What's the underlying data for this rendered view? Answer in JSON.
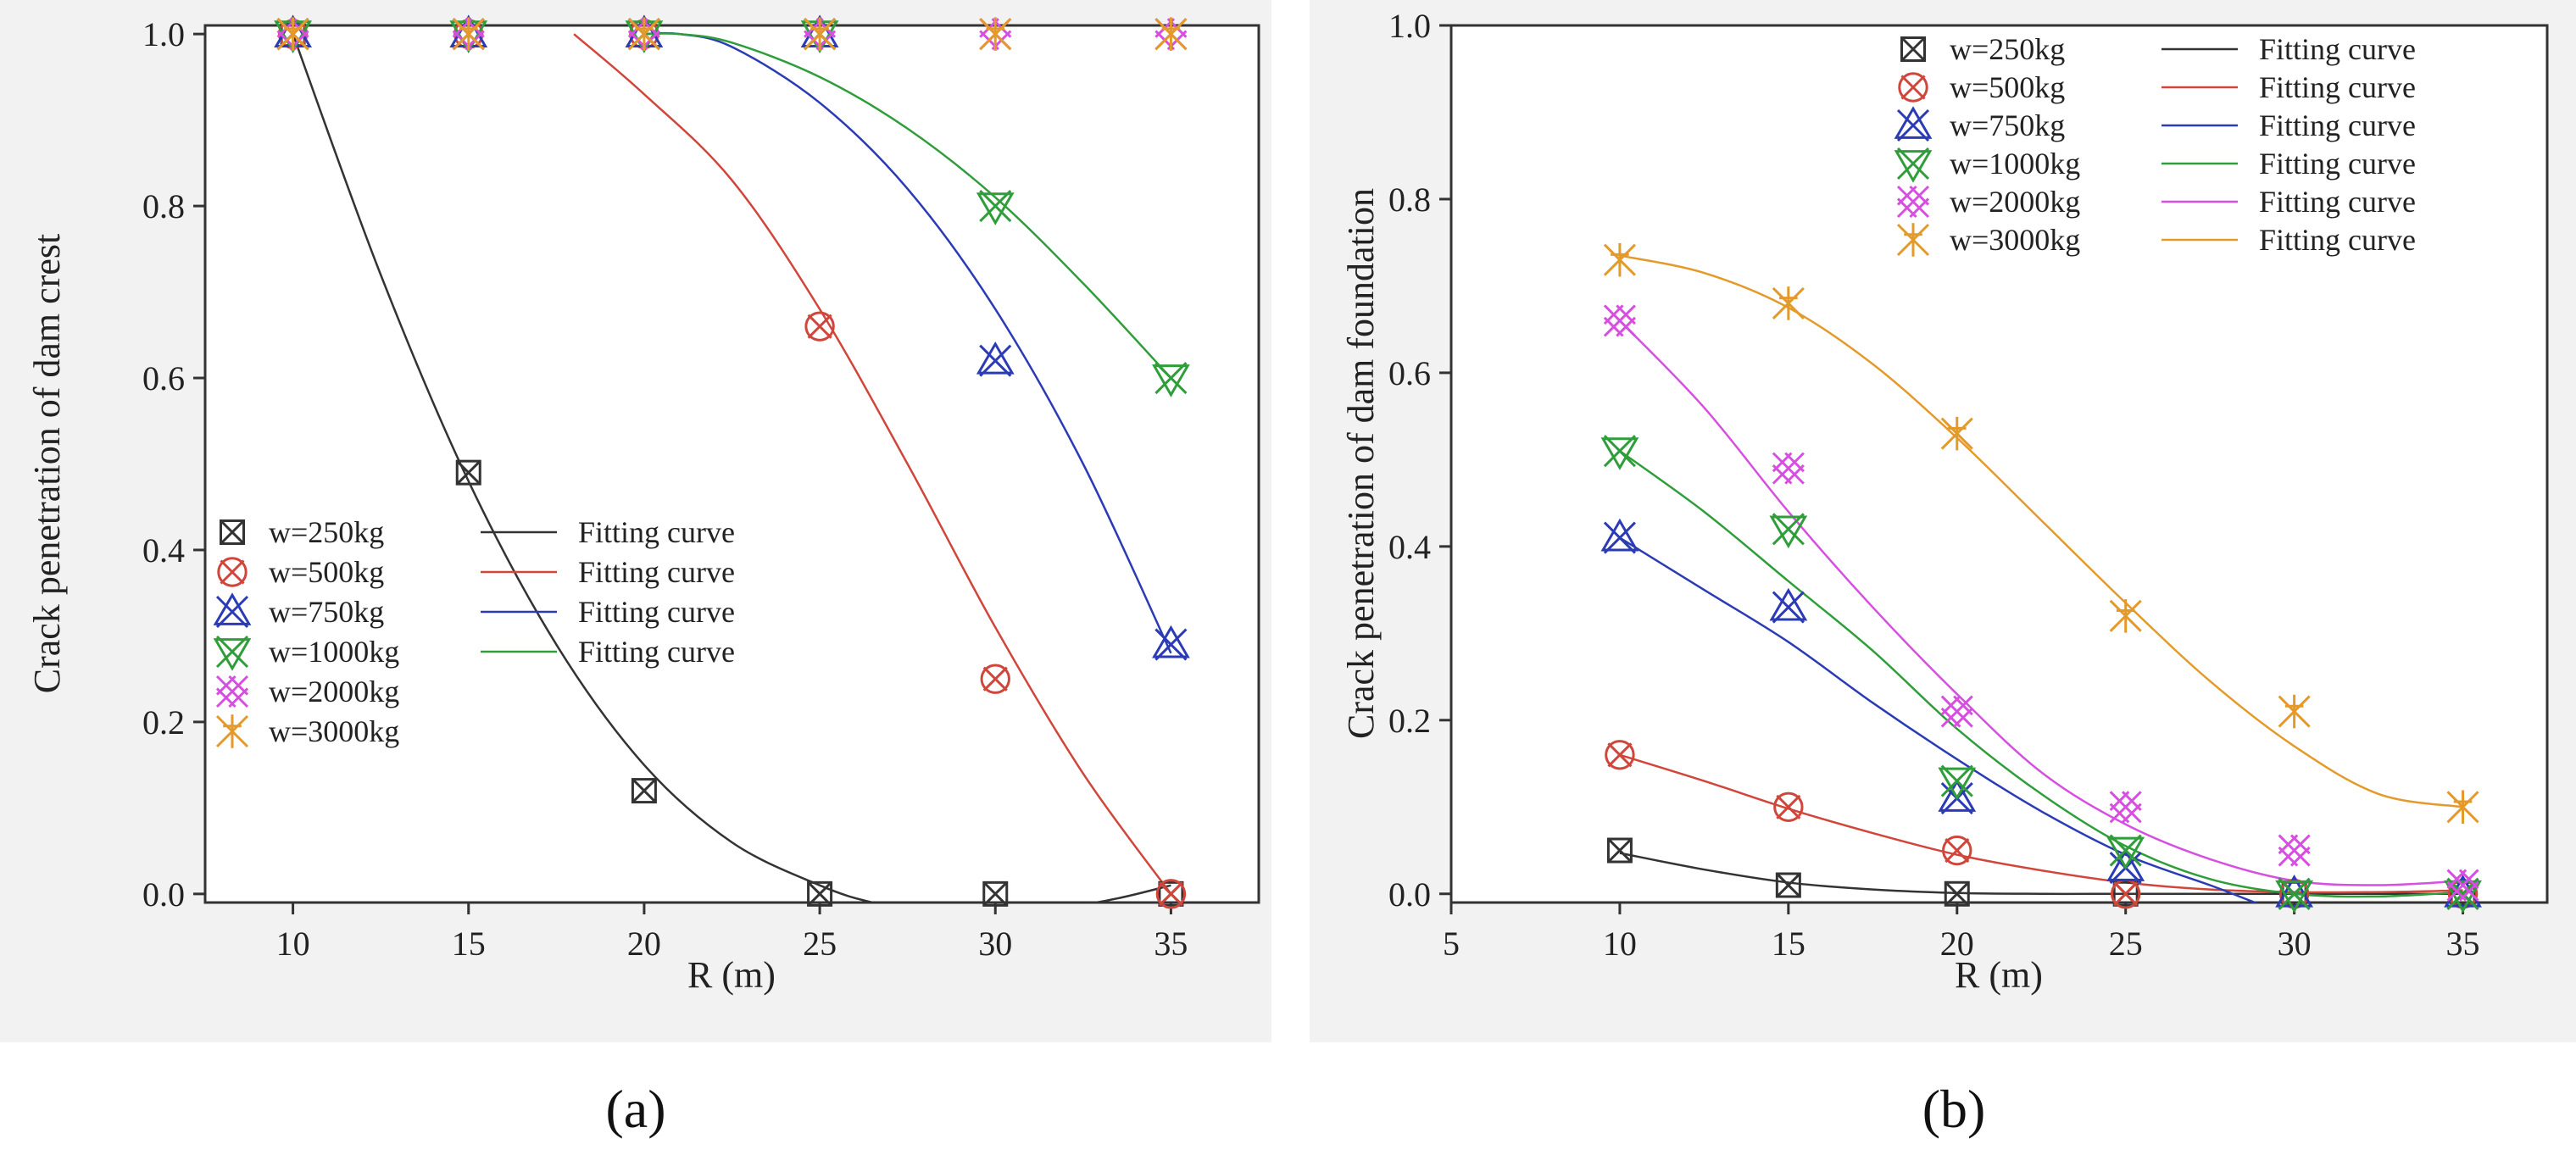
{
  "chart_data": [
    {
      "type": "scatter",
      "panel_label": "(a)",
      "xlabel": "R (m)",
      "ylabel": "Crack penetration of dam crest",
      "xlim": [
        7.5,
        37.5
      ],
      "ylim": [
        -0.01,
        1.01
      ],
      "xticks": [
        10,
        15,
        20,
        25,
        30,
        35
      ],
      "yticks": [
        0.0,
        0.2,
        0.4,
        0.6,
        0.8,
        1.0
      ],
      "xtick_labels": [
        "10",
        "15",
        "20",
        "25",
        "30",
        "35"
      ],
      "ytick_labels": [
        "0.0",
        "0.2",
        "0.4",
        "0.6",
        "0.8",
        "1.0"
      ],
      "legend_position": "lower-left",
      "fit_label": "Fitting curve",
      "series": [
        {
          "name": "w=250kg",
          "color": "#333333",
          "marker": "box-x",
          "has_fit": true,
          "x": [
            10,
            15,
            20,
            25,
            30,
            35
          ],
          "y": [
            1.0,
            0.49,
            0.12,
            0.0,
            0.0,
            0.0
          ],
          "fit_x": [
            10,
            12.5,
            15,
            17.5,
            20,
            22.5,
            25,
            26.5,
            28,
            30,
            32,
            33.5,
            35
          ],
          "fit_y": [
            1.0,
            0.72,
            0.48,
            0.29,
            0.15,
            0.06,
            0.01,
            -0.01,
            -0.02,
            -0.02,
            -0.015,
            -0.005,
            0.01
          ]
        },
        {
          "name": "w=500kg",
          "color": "#d0463b",
          "marker": "circle-x",
          "has_fit": true,
          "x": [
            10,
            15,
            20,
            25,
            30,
            35
          ],
          "y": [
            1.0,
            1.0,
            1.0,
            0.66,
            0.25,
            0.0
          ],
          "fit_x": [
            18,
            20,
            22.5,
            25,
            27.5,
            30,
            32.5,
            35
          ],
          "fit_y": [
            1.0,
            0.93,
            0.83,
            0.68,
            0.5,
            0.31,
            0.14,
            0.0
          ]
        },
        {
          "name": "w=750kg",
          "color": "#2b3bb5",
          "marker": "triangle-x",
          "has_fit": true,
          "x": [
            10,
            15,
            20,
            25,
            30,
            35
          ],
          "y": [
            1.0,
            1.0,
            1.0,
            1.0,
            0.62,
            0.29
          ],
          "fit_x": [
            20,
            21,
            22.5,
            25,
            27.5,
            30,
            32.5,
            35
          ],
          "fit_y": [
            1.0,
            1.0,
            0.985,
            0.92,
            0.82,
            0.68,
            0.5,
            0.28
          ]
        },
        {
          "name": "w=1000kg",
          "color": "#2f9e3a",
          "marker": "triangle-down-x",
          "has_fit": true,
          "x": [
            10,
            15,
            20,
            25,
            30,
            35
          ],
          "y": [
            1.0,
            1.0,
            1.0,
            1.0,
            0.8,
            0.6
          ],
          "fit_x": [
            20,
            21,
            22.5,
            25,
            27.5,
            30,
            32.5,
            35
          ],
          "fit_y": [
            1.0,
            1.0,
            0.99,
            0.95,
            0.89,
            0.81,
            0.71,
            0.6
          ]
        },
        {
          "name": "w=2000kg",
          "color": "#d64fe0",
          "marker": "diamond-x",
          "has_fit": false,
          "x": [
            10,
            15,
            20,
            25,
            30,
            35
          ],
          "y": [
            1.0,
            1.0,
            1.0,
            1.0,
            1.0,
            1.0
          ]
        },
        {
          "name": "w=3000kg",
          "color": "#e49a2a",
          "marker": "star",
          "has_fit": false,
          "x": [
            10,
            15,
            20,
            25,
            30,
            35
          ],
          "y": [
            1.0,
            1.0,
            1.0,
            1.0,
            1.0,
            1.0
          ]
        }
      ]
    },
    {
      "type": "scatter",
      "panel_label": "(b)",
      "xlabel": "R (m)",
      "ylabel": "Crack penetration of dam foundation",
      "xlim": [
        5,
        37.5
      ],
      "ylim": [
        -0.01,
        1.0
      ],
      "xticks": [
        5,
        10,
        15,
        20,
        25,
        30,
        35
      ],
      "yticks": [
        0.0,
        0.2,
        0.4,
        0.6,
        0.8,
        1.0
      ],
      "xtick_labels": [
        "5",
        "10",
        "15",
        "20",
        "25",
        "30",
        "35"
      ],
      "ytick_labels": [
        "0.0",
        "0.2",
        "0.4",
        "0.6",
        "0.8",
        "1.0"
      ],
      "legend_position": "top-right",
      "fit_label": "Fitting curve",
      "series": [
        {
          "name": "w=250kg",
          "color": "#333333",
          "marker": "box-x",
          "has_fit": true,
          "x": [
            10,
            15,
            20,
            25,
            30,
            35
          ],
          "y": [
            0.05,
            0.01,
            0.0,
            0.0,
            0.0,
            0.0
          ],
          "fit_x": [
            10,
            12.5,
            15,
            17.5,
            20,
            22.5,
            25,
            27.5,
            30,
            32.5,
            35
          ],
          "fit_y": [
            0.047,
            0.028,
            0.013,
            0.005,
            0.001,
            0.0,
            0.0,
            0.0,
            0.0,
            0.0,
            0.0
          ]
        },
        {
          "name": "w=500kg",
          "color": "#d0463b",
          "marker": "circle-x",
          "has_fit": true,
          "x": [
            10,
            15,
            20,
            25,
            30,
            35
          ],
          "y": [
            0.16,
            0.1,
            0.05,
            0.0,
            0.0,
            0.0
          ],
          "fit_x": [
            10,
            12.5,
            15,
            17.5,
            20,
            22.5,
            25,
            27.5,
            30,
            32.5,
            35
          ],
          "fit_y": [
            0.16,
            0.13,
            0.098,
            0.07,
            0.045,
            0.027,
            0.013,
            0.005,
            0.002,
            0.002,
            0.004
          ]
        },
        {
          "name": "w=750kg",
          "color": "#2b3bb5",
          "marker": "triangle-x",
          "has_fit": true,
          "x": [
            10,
            15,
            20,
            25,
            30,
            35
          ],
          "y": [
            0.41,
            0.33,
            0.11,
            0.03,
            0.0,
            0.0
          ],
          "fit_x": [
            10,
            12.5,
            15,
            17.5,
            20,
            22.5,
            25,
            27.5,
            28.5,
            29.5
          ],
          "fit_y": [
            0.41,
            0.35,
            0.29,
            0.22,
            0.155,
            0.095,
            0.045,
            0.01,
            -0.005,
            -0.02
          ]
        },
        {
          "name": "w=1000kg",
          "color": "#2f9e3a",
          "marker": "triangle-down-x",
          "has_fit": true,
          "x": [
            10,
            15,
            20,
            25,
            30,
            35
          ],
          "y": [
            0.51,
            0.42,
            0.13,
            0.05,
            0.0,
            0.0
          ],
          "fit_x": [
            10,
            12.5,
            15,
            17.5,
            20,
            22.5,
            25,
            27.5,
            30,
            32.5,
            35
          ],
          "fit_y": [
            0.51,
            0.44,
            0.36,
            0.28,
            0.19,
            0.115,
            0.055,
            0.017,
            0.0,
            -0.003,
            0.002
          ]
        },
        {
          "name": "w=2000kg",
          "color": "#d64fe0",
          "marker": "diamond-x",
          "has_fit": true,
          "x": [
            10,
            15,
            20,
            25,
            30,
            35
          ],
          "y": [
            0.66,
            0.49,
            0.21,
            0.1,
            0.05,
            0.01
          ],
          "fit_x": [
            10,
            12.5,
            15,
            17.5,
            20,
            22.5,
            25,
            27.5,
            30,
            32.5,
            35
          ],
          "fit_y": [
            0.66,
            0.56,
            0.44,
            0.33,
            0.23,
            0.14,
            0.08,
            0.04,
            0.015,
            0.01,
            0.015
          ]
        },
        {
          "name": "w=3000kg",
          "color": "#e49a2a",
          "marker": "star",
          "has_fit": true,
          "x": [
            10,
            15,
            20,
            25,
            30,
            35
          ],
          "y": [
            0.73,
            0.68,
            0.53,
            0.32,
            0.21,
            0.1
          ],
          "fit_x": [
            10,
            12.5,
            15,
            17.5,
            20,
            22.5,
            25,
            27.5,
            30,
            32.5,
            35
          ],
          "fit_y": [
            0.735,
            0.715,
            0.675,
            0.61,
            0.525,
            0.43,
            0.335,
            0.245,
            0.17,
            0.115,
            0.1
          ]
        }
      ]
    }
  ]
}
